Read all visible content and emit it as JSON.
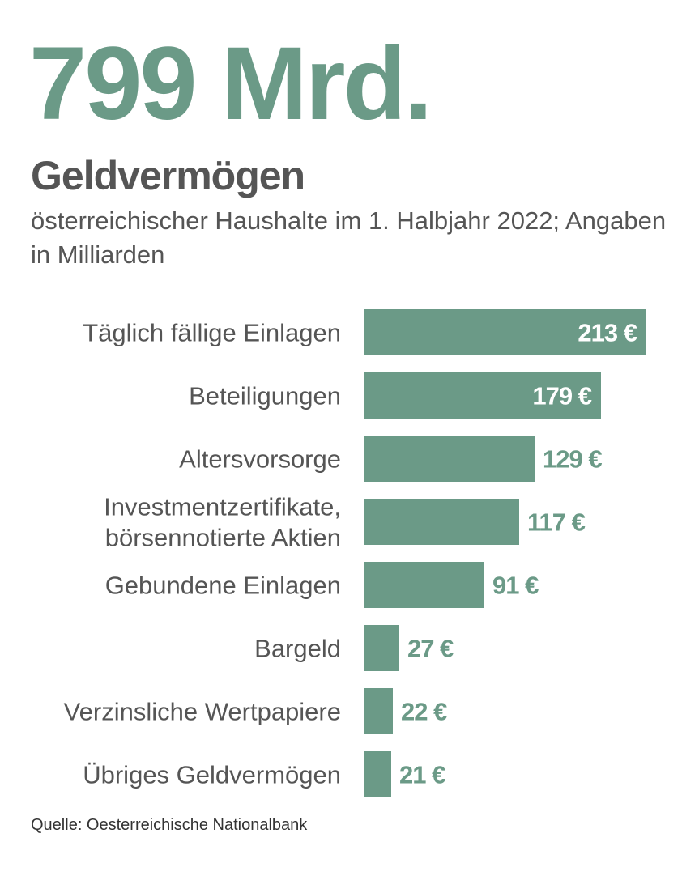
{
  "headline": "799 Mrd.",
  "title": "Geldvermögen",
  "subtitle": "österreichischer Haushalte im 1. Halbjahr 2022; Angaben in Milliarden",
  "source": "Quelle: Oesterreichische Nationalbank",
  "colors": {
    "accent": "#6b9a87",
    "text": "#555555",
    "bar_label_inside": "#ffffff"
  },
  "chart_data": {
    "type": "bar",
    "orientation": "horizontal",
    "categories": [
      "Täglich fällige Einlagen",
      "Beteiligungen",
      "Altersvorsorge",
      "Investmentzertifikate, börsennotierte Aktien",
      "Gebundene Einlagen",
      "Bargeld",
      "Verzinsliche Wertpapiere",
      "Übriges Geldvermögen"
    ],
    "category_lines": [
      [
        "Täglich fällige Einlagen"
      ],
      [
        "Beteiligungen"
      ],
      [
        "Altersvorsorge"
      ],
      [
        "Investmentzertifikate,",
        "börsennotierte Aktien"
      ],
      [
        "Gebundene Einlagen"
      ],
      [
        "Bargeld"
      ],
      [
        "Verzinsliche Wertpapiere"
      ],
      [
        "Übriges Geldvermögen"
      ]
    ],
    "values": [
      213,
      179,
      129,
      117,
      91,
      27,
      22,
      21
    ],
    "value_labels": [
      "213 €",
      "179 €",
      "129 €",
      "117 €",
      "91 €",
      "27 €",
      "22 €",
      "21 €"
    ],
    "labels_inside": [
      true,
      true,
      false,
      false,
      false,
      false,
      false,
      false
    ],
    "xlim": [
      0,
      213
    ],
    "grid": false,
    "legend": "none"
  }
}
